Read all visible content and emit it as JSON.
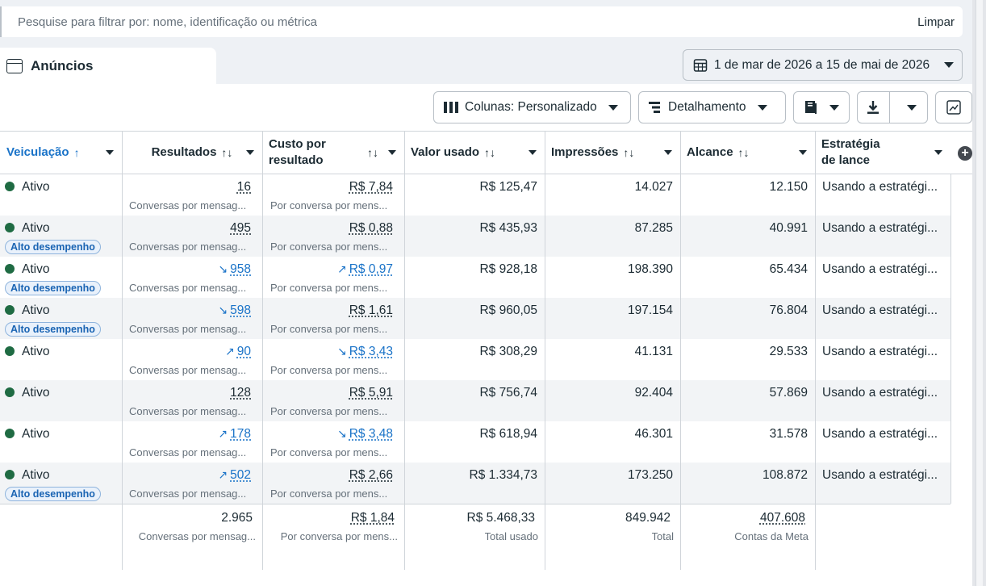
{
  "search": {
    "placeholder": "Pesquise para filtrar por: nome, identificação ou métrica",
    "clear_label": "Limpar"
  },
  "tab": {
    "title": "Anúncios"
  },
  "date_range": "1 de mar de 2026 a 15 de mai de 2026",
  "toolbar": {
    "columns_label": "Colunas: Personalizado",
    "breakdown_label": "Detalhamento"
  },
  "columns": [
    {
      "label": "Veiculação",
      "sort": "↑"
    },
    {
      "label": "Resultados",
      "sort": "↑↓"
    },
    {
      "label": "Custo por resultado",
      "sort": "↑↓"
    },
    {
      "label": "Valor usado",
      "sort": "↑↓"
    },
    {
      "label": "Impressões",
      "sort": "↑↓"
    },
    {
      "label": "Alcance",
      "sort": "↑↓"
    },
    {
      "label": "Estratégia de lance",
      "sort": ""
    }
  ],
  "labels": {
    "status_active": "Ativo",
    "high_performance": "Alto desempenho",
    "results_sub": "Conversas por mensag...",
    "cost_sub": "Por conversa por mens...",
    "bid": "Usando a estratégi..."
  },
  "rows": [
    {
      "badge": false,
      "results": "16",
      "results_trend": "",
      "cost": "R$ 7,84",
      "cost_trend": "",
      "spent": "R$ 125,47",
      "impressions": "14.027",
      "reach": "12.150"
    },
    {
      "badge": true,
      "results": "495",
      "results_trend": "",
      "cost": "R$ 0,88",
      "cost_trend": "",
      "spent": "R$ 435,93",
      "impressions": "87.285",
      "reach": "40.991"
    },
    {
      "badge": true,
      "results": "958",
      "results_trend": "down",
      "cost": "R$ 0,97",
      "cost_trend": "up",
      "spent": "R$ 928,18",
      "impressions": "198.390",
      "reach": "65.434"
    },
    {
      "badge": true,
      "results": "598",
      "results_trend": "down",
      "cost": "R$ 1,61",
      "cost_trend": "",
      "spent": "R$ 960,05",
      "impressions": "197.154",
      "reach": "76.804"
    },
    {
      "badge": false,
      "results": "90",
      "results_trend": "up",
      "cost": "R$ 3,43",
      "cost_trend": "down",
      "spent": "R$ 308,29",
      "impressions": "41.131",
      "reach": "29.533"
    },
    {
      "badge": false,
      "results": "128",
      "results_trend": "",
      "cost": "R$ 5,91",
      "cost_trend": "",
      "spent": "R$ 756,74",
      "impressions": "92.404",
      "reach": "57.869"
    },
    {
      "badge": false,
      "results": "178",
      "results_trend": "up",
      "cost": "R$ 3,48",
      "cost_trend": "down",
      "spent": "R$ 618,94",
      "impressions": "46.301",
      "reach": "31.578"
    },
    {
      "badge": true,
      "results": "502",
      "results_trend": "up",
      "cost": "R$ 2,66",
      "cost_trend": "",
      "spent": "R$ 1.334,73",
      "impressions": "173.250",
      "reach": "108.872"
    }
  ],
  "totals": {
    "results": "2.965",
    "results_sub": "Conversas por mensag...",
    "cost": "R$ 1,84",
    "cost_sub": "Por conversa por mens...",
    "spent": "R$ 5.468,33",
    "spent_sub": "Total usado",
    "impressions": "849.942",
    "impressions_sub": "Total",
    "reach": "407.608",
    "reach_sub": "Contas da Meta"
  }
}
